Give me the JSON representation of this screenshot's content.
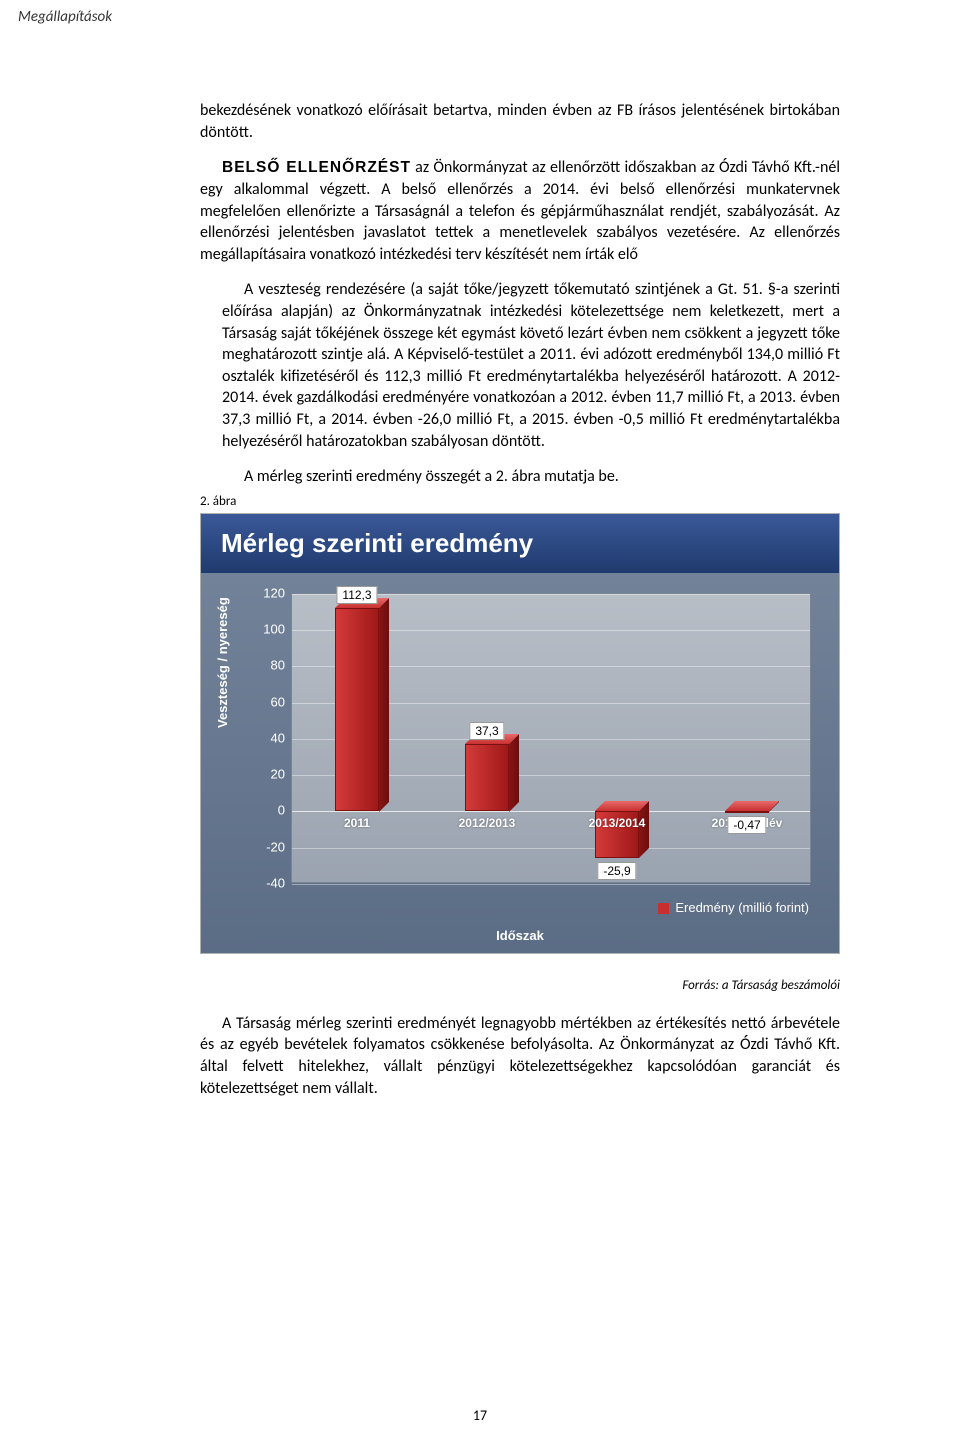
{
  "header": {
    "breadcrumb": "Megállapítások"
  },
  "body": {
    "p1": "bekezdésének vonatkozó előírásait betartva, minden évben az FB írásos jelentésének birtokában döntött.",
    "p2_lead": "BELSŐ ELLENŐRZÉST",
    "p2_rest": " az Önkormányzat az ellenőrzött időszakban az Ózdi Távhő Kft.-nél egy alkalommal végzett. A belső ellenőrzés a 2014. évi belső ellenőrzési munkatervnek megfelelően ellenőrizte a Társaságnál a telefon és gépjárműhasználat rendjét, szabályozását. Az ellenőrzési jelentésben javaslatot tettek a menetlevelek szabályos vezetésére. Az ellenőrzés megállapításaira vonatkozó intézkedési terv készítését nem írták elő",
    "p3": "A veszteség rendezésére (a saját tőke/jegyzett tőkemutató szintjének a Gt. 51. §-a szerinti előírása alapján) az Önkormányzatnak intézkedési kötelezettsége nem keletkezett, mert a Társaság saját tőkéjének összege két egymást követő lezárt évben nem csökkent a jegyzett tőke meghatározott szintje alá. A Képviselő-testület a 2011. évi adózott eredményből 134,0 millió Ft osztalék kifizetéséről és 112,3 millió Ft eredménytartalékba helyezéséről határozott. A 2012-2014. évek gazdálkodási eredményére vonatkozóan a 2012. évben 11,7 millió Ft, a 2013. évben 37,3 millió Ft, a 2014. évben -26,0 millió Ft, a 2015. évben -0,5 millió Ft eredménytartalékba helyezéséről határozatokban szabályosan döntött.",
    "p4": "A mérleg szerinti eredmény összegét a 2. ábra mutatja be.",
    "fig_caption": "2. ábra"
  },
  "chart": {
    "title": "Mérleg szerinti eredmény",
    "y_axis_title": "Veszteség / nyereség",
    "x_axis_title": "Időszak",
    "legend_label": "Eredmény (millió forint)",
    "y_ticks": [
      "120",
      "100",
      "80",
      "60",
      "40",
      "20",
      "0",
      "-20",
      "-40"
    ],
    "ymin": -40,
    "ymax": 120,
    "categories": [
      "2011",
      "2012/2013",
      "2013/2014",
      "2014 II. félév"
    ],
    "values": [
      112.3,
      37.3,
      -25.9,
      -0.47
    ],
    "value_labels": [
      "112,3",
      "37,3",
      "-25,9",
      "-0,47"
    ],
    "bar_color_front": "#c83030",
    "bar_color_side": "#8a1414",
    "bar_color_top": "#e86a6a",
    "plot_bg": "#a8b0bc",
    "panel_bg": "#5b6c85",
    "title_bg": "#2a4a88"
  },
  "source": "Forrás: a Társaság beszámolói",
  "body2": {
    "p5": "A Társaság mérleg szerinti eredményét legnagyobb mértékben az értékesítés nettó árbevétele és az egyéb bevételek folyamatos csökkenése befolyásolta. Az Önkormányzat az Ózdi Távhő Kft. által felvett hitelekhez, vállalt pénzügyi kötelezettségekhez kapcsolódóan garanciát és kötelezettséget nem vállalt."
  },
  "page_number": "17"
}
